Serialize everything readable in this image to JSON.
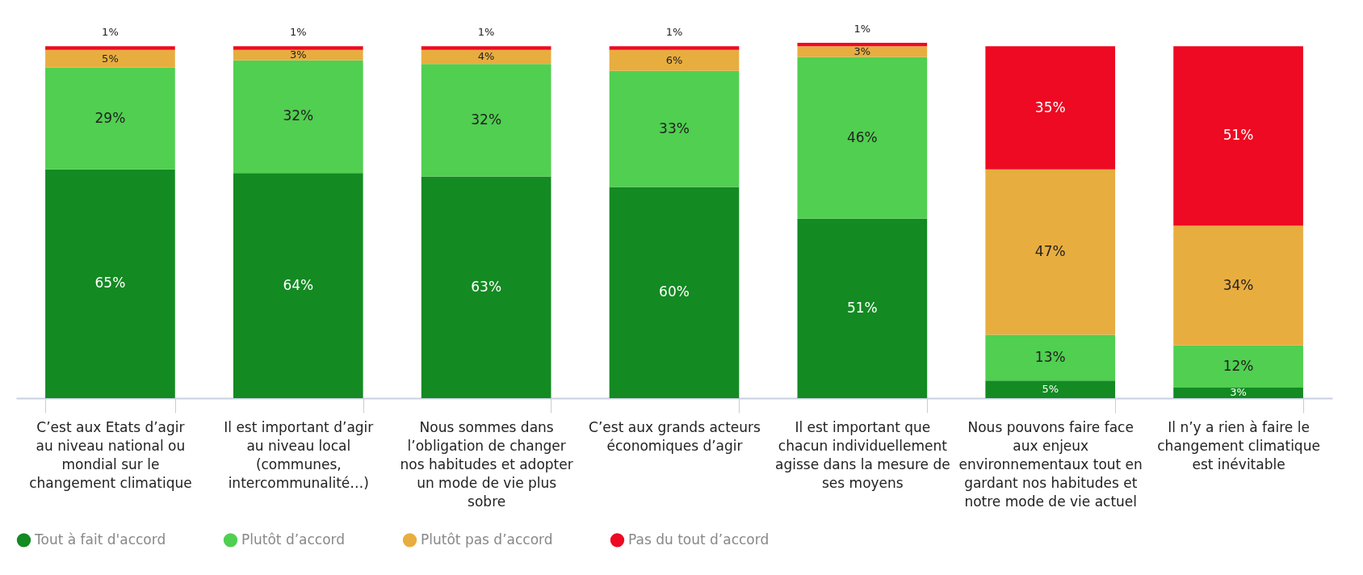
{
  "chart_data": {
    "type": "bar",
    "stacked": true,
    "legend": "bottom",
    "tick_labels": "x",
    "grid": false,
    "categories": [
      "C’est aux Etats d’agir au niveau national ou mondial sur le changement climatique",
      "Il est important d’agir au niveau local (communes, intercommunalité…)",
      "Nous sommes dans l’obligation de changer nos habitudes et adopter un mode de vie plus sobre",
      "C’est aux grands acteurs économiques d’agir",
      "Il est important que chacun individuellement agisse dans la mesure de ses moyens",
      "Nous pouvons faire face aux enjeux environnementaux tout en gardant nos habitudes et notre mode de vie actuel",
      "Il n’y a rien à faire le changement climatique est inévitable"
    ],
    "series": [
      {
        "name": "Tout à fait d'accord",
        "color": "#138a22",
        "values": [
          65,
          64,
          63,
          60,
          51,
          5,
          3
        ],
        "value_labels": [
          "65%",
          "64%",
          "63%",
          "60%",
          "51%",
          "5%",
          "3%"
        ]
      },
      {
        "name": "Plutôt d’accord",
        "color": "#50cf50",
        "values": [
          29,
          32,
          32,
          33,
          46,
          13,
          12
        ],
        "value_labels": [
          "29%",
          "32%",
          "32%",
          "33%",
          "46%",
          "13%",
          "12%"
        ]
      },
      {
        "name": "Plutôt pas d’accord",
        "color": "#e8ad3f",
        "values": [
          5,
          3,
          4,
          6,
          3,
          47,
          34
        ],
        "value_labels": [
          "5%",
          "3%",
          "4%",
          "6%",
          "3%",
          "47%",
          "34%"
        ]
      },
      {
        "name": "Pas du tout d’accord",
        "color": "#ed0a22",
        "values": [
          1,
          1,
          1,
          1,
          1,
          35,
          51
        ],
        "value_labels": [
          "1%",
          "1%",
          "1%",
          "1%",
          "1%",
          "35%",
          "51%"
        ]
      }
    ]
  }
}
